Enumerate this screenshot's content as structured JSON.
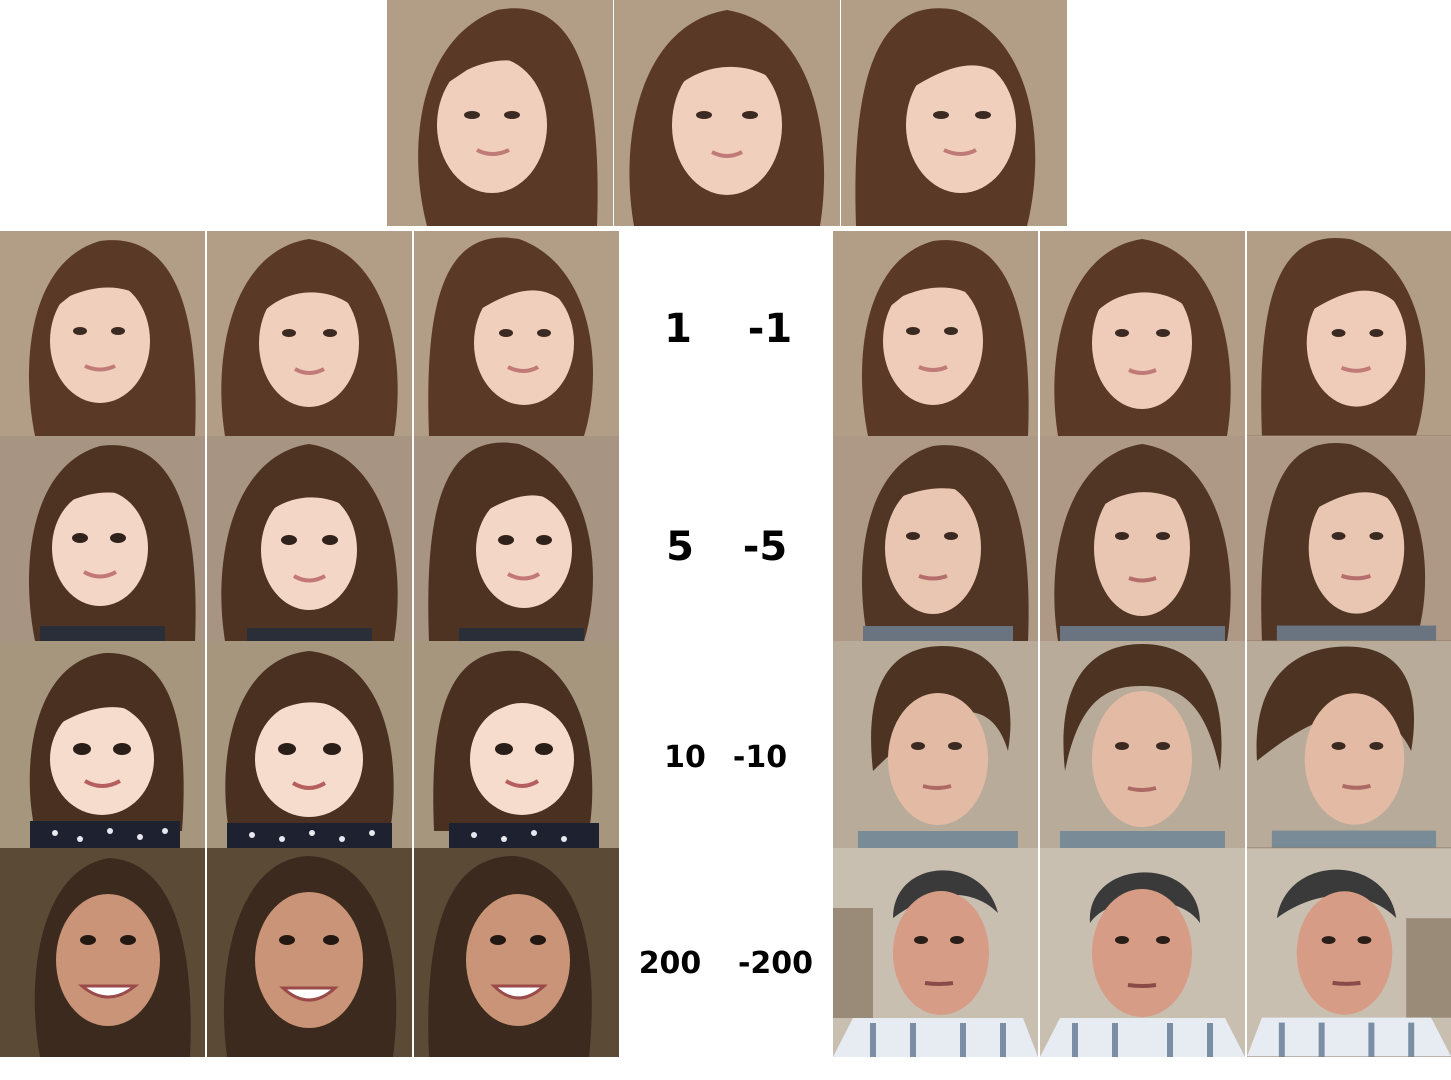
{
  "labels": [
    {
      "pos": "1",
      "neg": "-1"
    },
    {
      "pos": "5",
      "neg": "-5"
    },
    {
      "pos": "10",
      "neg": "-10"
    },
    {
      "pos": "200",
      "neg": "-200"
    }
  ],
  "colors": {
    "hair_brown": "#5a3a26",
    "skin_light": "#f1cfbd",
    "skin_man": "#d79c86",
    "hair_dark": "#3a3a3a",
    "bg_warm": "#b29d86",
    "bg_stone": "#c9bfb1"
  }
}
